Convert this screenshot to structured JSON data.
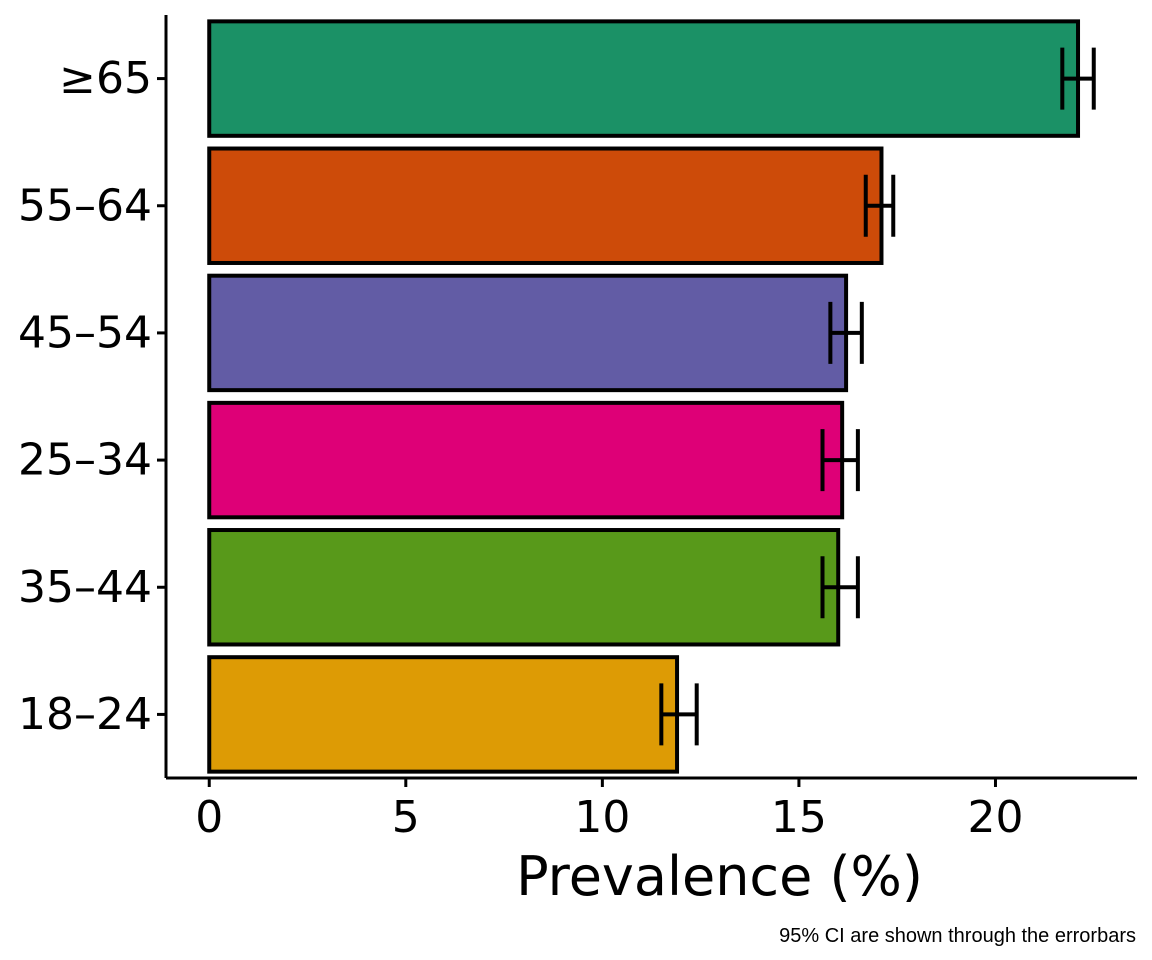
{
  "chart_data": {
    "type": "bar",
    "orientation": "horizontal",
    "categories": [
      "≥65",
      "55–64",
      "45–54",
      "25–34",
      "35–44",
      "18–24"
    ],
    "values": [
      22.1,
      17.1,
      16.2,
      16.1,
      16.0,
      11.9
    ],
    "ci_lower": [
      21.7,
      16.7,
      15.8,
      15.6,
      15.6,
      11.5
    ],
    "ci_upper": [
      22.5,
      17.4,
      16.6,
      16.5,
      16.5,
      12.4
    ],
    "colors": [
      "#1B9166",
      "#CD4B09",
      "#625CA5",
      "#DE0077",
      "#58991A",
      "#DD9B05"
    ],
    "xlabel": "Prevalence (%)",
    "ylabel": "",
    "xlim": [
      -1.1,
      23.6
    ],
    "x_ticks": [
      0,
      5,
      10,
      15,
      20
    ],
    "x_tick_labels": [
      "0",
      "5",
      "10",
      "15",
      "20"
    ],
    "caption": "95% CI are shown through the errorbars",
    "grid": false,
    "legend": "none"
  }
}
